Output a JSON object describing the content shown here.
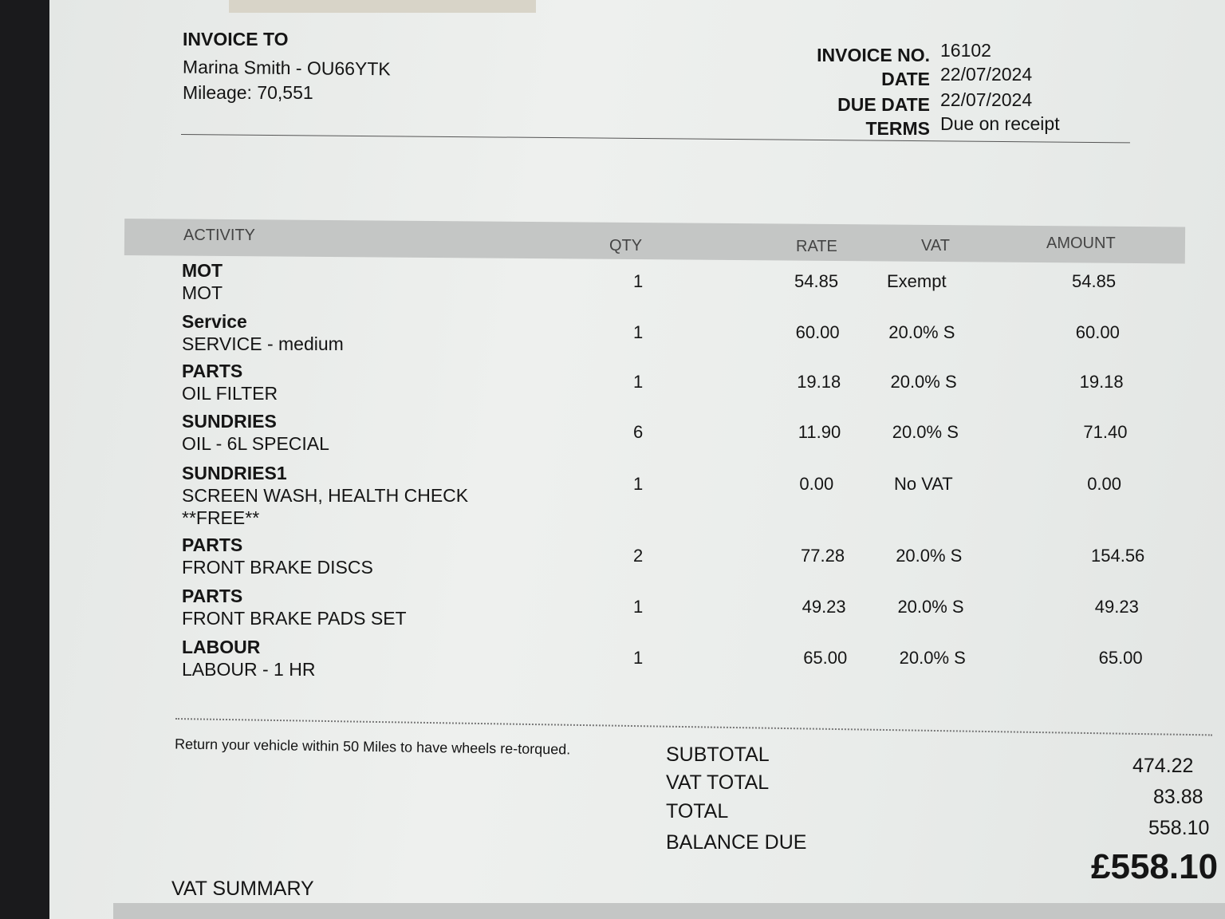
{
  "invoice_to": {
    "label": "INVOICE TO",
    "customer": "Marina Smith - OU66YTK",
    "mileage_label": "Mileage:",
    "mileage": "70,551"
  },
  "meta": [
    {
      "label": "INVOICE NO.",
      "value": "16102"
    },
    {
      "label": "DATE",
      "value": "22/07/2024"
    },
    {
      "label": "DUE DATE",
      "value": "22/07/2024"
    },
    {
      "label": "TERMS",
      "value": "Due on receipt"
    }
  ],
  "table": {
    "headers": {
      "activity": "ACTIVITY",
      "qty": "QTY",
      "rate": "RATE",
      "vat": "VAT",
      "amount": "AMOUNT"
    },
    "rows": [
      {
        "activity": "MOT",
        "description": "MOT",
        "extra": "",
        "qty": "1",
        "rate": "54.85",
        "vat": "Exempt",
        "amount": "54.85"
      },
      {
        "activity": "Service",
        "description": "SERVICE - medium",
        "extra": "",
        "qty": "1",
        "rate": "60.00",
        "vat": "20.0% S",
        "amount": "60.00"
      },
      {
        "activity": "PARTS",
        "description": "OIL FILTER",
        "extra": "",
        "qty": "1",
        "rate": "19.18",
        "vat": "20.0% S",
        "amount": "19.18"
      },
      {
        "activity": "SUNDRIES",
        "description": "OIL - 6L SPECIAL",
        "extra": "",
        "qty": "6",
        "rate": "11.90",
        "vat": "20.0% S",
        "amount": "71.40"
      },
      {
        "activity": "SUNDRIES1",
        "description": "SCREEN WASH, HEALTH CHECK",
        "extra": "**FREE**",
        "qty": "1",
        "rate": "0.00",
        "vat": "No VAT",
        "amount": "0.00"
      },
      {
        "activity": "PARTS",
        "description": "FRONT BRAKE DISCS",
        "extra": "",
        "qty": "2",
        "rate": "77.28",
        "vat": "20.0% S",
        "amount": "154.56"
      },
      {
        "activity": "PARTS",
        "description": "FRONT BRAKE PADS SET",
        "extra": "",
        "qty": "1",
        "rate": "49.23",
        "vat": "20.0% S",
        "amount": "49.23"
      },
      {
        "activity": "LABOUR",
        "description": "LABOUR - 1 HR",
        "extra": "",
        "qty": "1",
        "rate": "65.00",
        "vat": "20.0% S",
        "amount": "65.00"
      }
    ]
  },
  "note": "Return your vehicle within 50 Miles to have wheels re-torqued.",
  "totals": {
    "subtotal_label": "SUBTOTAL",
    "subtotal": "474.22",
    "vat_total_label": "VAT TOTAL",
    "vat_total": "83.88",
    "total_label": "TOTAL",
    "total": "558.10",
    "balance_due_label": "BALANCE DUE",
    "balance_due": "£558.10"
  },
  "vat_summary": "VAT SUMMARY"
}
